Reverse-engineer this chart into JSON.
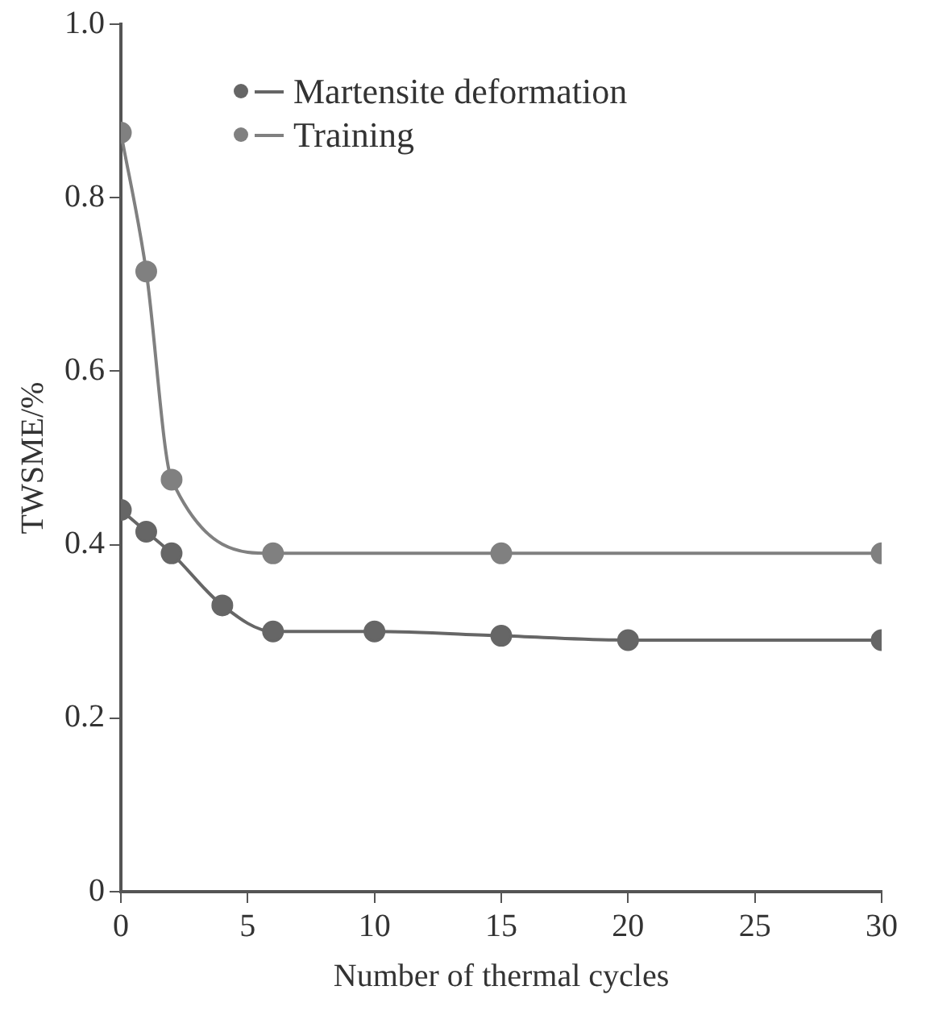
{
  "chart_data": {
    "type": "line",
    "xlabel": "Number of thermal cycles",
    "ylabel": "TWSME/%",
    "xlim": [
      0,
      30
    ],
    "xticks": [
      0,
      5,
      10,
      15,
      20,
      25,
      30
    ],
    "ylim": [
      0,
      1
    ],
    "yticks": [
      0,
      0.2,
      0.4,
      0.6,
      0.8,
      {
        "value": 1,
        "label": "1.0"
      }
    ],
    "grid": false,
    "legend": "top",
    "marker": "circle",
    "line_style": "solid",
    "series": [
      {
        "name": "Martensite deformation",
        "color": "#666666",
        "x": [
          0,
          1,
          2,
          4,
          6,
          10,
          15,
          20,
          30
        ],
        "values": [
          0.44,
          0.415,
          0.39,
          0.33,
          0.3,
          0.3,
          0.295,
          0.29,
          0.29
        ]
      },
      {
        "name": "Training",
        "color": "#808080",
        "x": [
          0,
          1,
          2,
          6,
          15,
          30
        ],
        "values": [
          0.875,
          0.715,
          0.475,
          0.39,
          0.39,
          0.39
        ]
      }
    ]
  }
}
